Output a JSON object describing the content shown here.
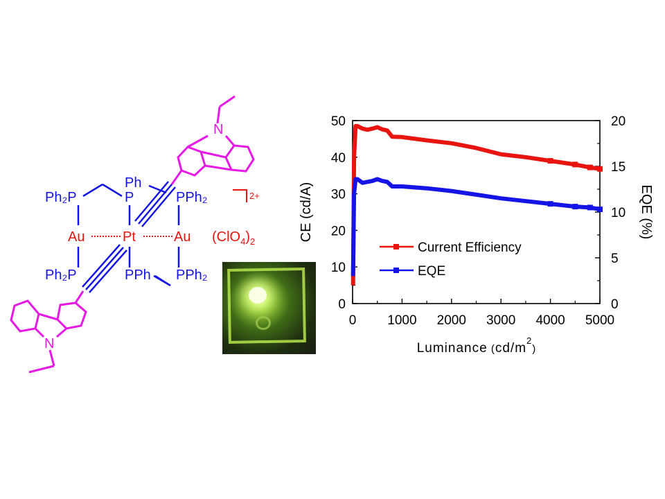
{
  "structure": {
    "ph2p_left_top": "Ph₂P",
    "ph": "Ph",
    "p_center": "P",
    "pph2_right_top": "PPh₂",
    "au_left": "Au",
    "pt": "Pt",
    "au_right": "Au",
    "ph2p_left_bottom": "Ph₂P",
    "pph_center_bottom": "PPh",
    "pph2_right_bottom": "PPh₂",
    "n_top": "N",
    "n_bottom": "N",
    "charge": "2+",
    "counterion_prefix": "(ClO",
    "counterion_sub1": "4",
    "counterion_suffix": ")",
    "counterion_sub2": "2",
    "colors": {
      "gold_pt": "#e8140f",
      "phosphine": "#1414e6",
      "carbazole": "#e619e6"
    }
  },
  "chart_data": {
    "type": "line",
    "xlabel": "Luminance",
    "xlabel_unit_prefix": "cd/m",
    "xlabel_unit_sup": "2",
    "ylabel_left": "CE (cd/A)",
    "ylabel_right": "EQE (%)",
    "xlim": [
      0,
      5000
    ],
    "ylim_left": [
      0,
      50
    ],
    "ylim_right": [
      0,
      20
    ],
    "x_ticks": [
      "0",
      "1000",
      "2000",
      "3000",
      "4000",
      "5000"
    ],
    "y_left_ticks": [
      "0",
      "10",
      "20",
      "30",
      "40",
      "50"
    ],
    "y_right_ticks": [
      "0",
      "5",
      "10",
      "15",
      "20"
    ],
    "legend": {
      "position": "center-left",
      "entries": [
        "Current Efficiency",
        "EQE"
      ]
    },
    "series": [
      {
        "name": "Current Efficiency",
        "axis": "left",
        "color": "#e8140f",
        "x": [
          10,
          30,
          60,
          100,
          200,
          300,
          400,
          500,
          600,
          700,
          800,
          1000,
          1500,
          2000,
          2500,
          3000,
          3500,
          4000,
          4500,
          4800,
          5000
        ],
        "y": [
          5,
          40,
          48.5,
          48.5,
          47.8,
          47.5,
          47.8,
          48.2,
          47.6,
          47.3,
          45.6,
          45.5,
          44.6,
          43.8,
          42.5,
          40.8,
          40.0,
          39.0,
          38.0,
          37.2,
          36.8
        ]
      },
      {
        "name": "EQE",
        "axis": "right",
        "color": "#1414e6",
        "x": [
          10,
          30,
          60,
          100,
          200,
          300,
          400,
          500,
          600,
          700,
          800,
          1000,
          1500,
          2000,
          2500,
          3000,
          3500,
          4000,
          4500,
          4800,
          5000
        ],
        "y": [
          3,
          12,
          13.6,
          13.6,
          13.2,
          13.3,
          13.4,
          13.6,
          13.4,
          13.3,
          12.8,
          12.8,
          12.6,
          12.3,
          11.9,
          11.5,
          11.2,
          10.9,
          10.6,
          10.5,
          10.3
        ]
      }
    ]
  }
}
